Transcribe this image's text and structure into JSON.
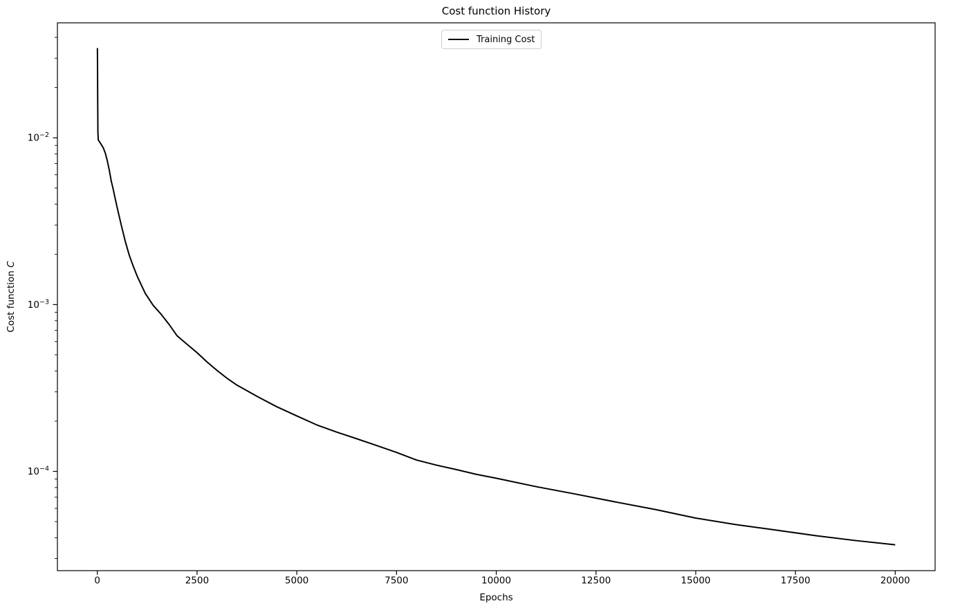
{
  "figure": {
    "background": "#ffffff"
  },
  "chart_data": {
    "type": "line",
    "title": "Cost function History",
    "xlabel": "Epochs",
    "ylabel": "Cost function C",
    "ylabel_parts": {
      "plain": "Cost function ",
      "math": "C"
    },
    "yscale": "log",
    "grid": false,
    "xlim": [
      -1000,
      21000
    ],
    "ylim": [
      2.54e-05,
      0.0489
    ],
    "x_ticks": [
      0,
      2500,
      5000,
      7500,
      10000,
      12500,
      15000,
      17500,
      20000
    ],
    "y_tick_exponents": [
      -2,
      -3,
      -4
    ],
    "axis_color": "#000000",
    "legend": {
      "position": "upper center",
      "entries": [
        {
          "label": "Training Cost",
          "color": "#000000",
          "line_width": 2
        }
      ]
    },
    "series": [
      {
        "name": "Training Cost",
        "color": "#000000",
        "line_width": 2,
        "x": [
          0,
          3,
          6,
          10,
          15,
          25,
          50,
          100,
          150,
          200,
          250,
          300,
          350,
          400,
          450,
          500,
          600,
          700,
          800,
          900,
          1000,
          1200,
          1400,
          1600,
          1800,
          2000,
          2250,
          2500,
          2750,
          3000,
          3250,
          3500,
          4000,
          4500,
          5000,
          5500,
          6000,
          6500,
          7000,
          7500,
          8000,
          8500,
          9000,
          9500,
          10000,
          11000,
          12000,
          13000,
          14000,
          15000,
          16000,
          17000,
          18000,
          19000,
          20000
        ],
        "y": [
          0.0345,
          0.034,
          0.026,
          0.0165,
          0.0108,
          0.0097,
          0.0095,
          0.0091,
          0.0087,
          0.0081,
          0.0073,
          0.0064,
          0.0055,
          0.0049,
          0.0043,
          0.0038,
          0.003,
          0.0024,
          0.00198,
          0.0017,
          0.00148,
          0.00117,
          0.00099,
          0.000875,
          0.00076,
          0.00065,
          0.000578,
          0.000515,
          0.000453,
          0.000403,
          0.000362,
          0.000329,
          0.000282,
          0.000244,
          0.000215,
          0.00019,
          0.000172,
          0.000157,
          0.000143,
          0.00013,
          0.000117,
          0.000109,
          0.0001025,
          9.6e-05,
          9.1e-05,
          8.1e-05,
          7.3e-05,
          6.55e-05,
          5.9e-05,
          5.25e-05,
          4.8e-05,
          4.45e-05,
          4.12e-05,
          3.85e-05,
          3.63e-05
        ]
      }
    ]
  }
}
